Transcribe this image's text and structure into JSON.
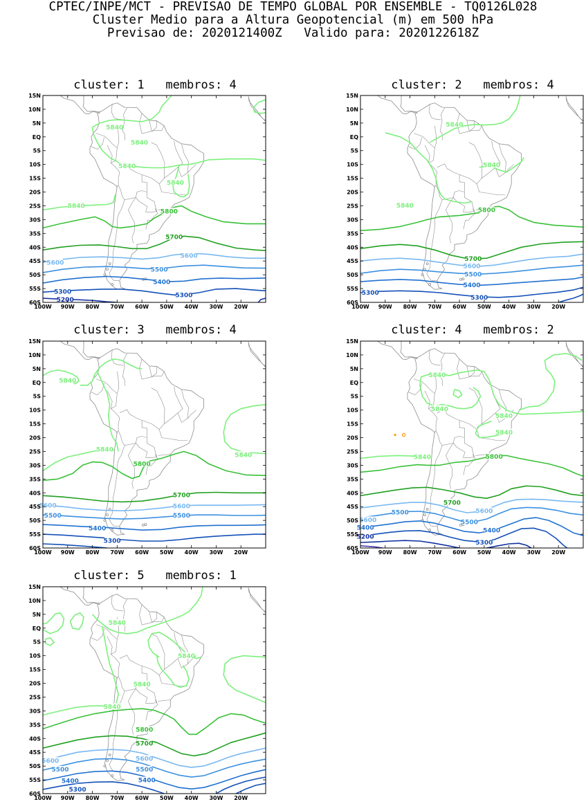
{
  "header": {
    "line1": "CPTEC/INPE/MCT - PREVISAO DE TEMPO GLOBAL POR ENSEMBLE - TQ0126L028",
    "line2": "Cluster Medio para a Altura Geopotencial (m) em 500 hPa",
    "line3": "Previsao de: 2020121400Z   Valido para: 2020122618Z"
  },
  "axes": {
    "lat_ticks": [
      "15N",
      "10N",
      "5N",
      "EQ",
      "5S",
      "10S",
      "15S",
      "20S",
      "25S",
      "30S",
      "35S",
      "40S",
      "45S",
      "50S",
      "55S",
      "60S"
    ],
    "lon_ticks": [
      "100W",
      "90W",
      "80W",
      "70W",
      "60W",
      "50W",
      "40W",
      "30W",
      "20W"
    ]
  },
  "colors": {
    "c5840": "#7cf07c",
    "c5800": "#38c038",
    "c5700": "#20a020",
    "c5600": "#78b8f0",
    "c5500": "#3c90e0",
    "c5400": "#2070d0",
    "c5300": "#1450b8",
    "c5200": "#1030a0",
    "c5100": "#5038b0",
    "coast": "#8c8c8c",
    "spot": "#ff9900"
  },
  "panels": [
    {
      "title": "cluster: 1   membros: 4",
      "labels": [
        {
          "text": "5840",
          "level": "5840"
        },
        {
          "text": "5840",
          "level": "5840"
        },
        {
          "text": "5840",
          "level": "5840"
        },
        {
          "text": "5840",
          "level": "5840"
        },
        {
          "text": "5840",
          "level": "5840"
        },
        {
          "text": "5800",
          "level": "5800"
        },
        {
          "text": "5700",
          "level": "5700"
        },
        {
          "text": "5600",
          "level": "5600"
        },
        {
          "text": "5600",
          "level": "5600"
        },
        {
          "text": "5500",
          "level": "5500"
        },
        {
          "text": "5400",
          "level": "5400"
        },
        {
          "text": "5300",
          "level": "5300"
        },
        {
          "text": "5300",
          "level": "5300"
        },
        {
          "text": "5200",
          "level": "5200"
        }
      ]
    },
    {
      "title": "cluster: 2   membros: 4",
      "labels": [
        {
          "text": "5840",
          "level": "5840"
        },
        {
          "text": "5840",
          "level": "5840"
        },
        {
          "text": "5840",
          "level": "5840"
        },
        {
          "text": "5800",
          "level": "5800"
        },
        {
          "text": "5700",
          "level": "5700"
        },
        {
          "text": "5600",
          "level": "5600"
        },
        {
          "text": "5500",
          "level": "5500"
        },
        {
          "text": "5400",
          "level": "5400"
        },
        {
          "text": "5300",
          "level": "5300"
        },
        {
          "text": "5300",
          "level": "5300"
        }
      ]
    },
    {
      "title": "cluster: 3   membros: 4",
      "labels": [
        {
          "text": "5840",
          "level": "5840"
        },
        {
          "text": "5840",
          "level": "5840"
        },
        {
          "text": "5840",
          "level": "5840"
        },
        {
          "text": "5800",
          "level": "5800"
        },
        {
          "text": "5700",
          "level": "5700"
        },
        {
          "text": "5600",
          "level": "5600"
        },
        {
          "text": "5600",
          "level": "5600"
        },
        {
          "text": "5500",
          "level": "5500"
        },
        {
          "text": "5500",
          "level": "5500"
        },
        {
          "text": "5400",
          "level": "5400"
        },
        {
          "text": "5300",
          "level": "5300"
        }
      ]
    },
    {
      "title": "cluster: 4   membros: 2",
      "labels": [
        {
          "text": "5840",
          "level": "5840"
        },
        {
          "text": "5840",
          "level": "5840"
        },
        {
          "text": "5840",
          "level": "5840"
        },
        {
          "text": "5840",
          "level": "5840"
        },
        {
          "text": "5840",
          "level": "5840"
        },
        {
          "text": "5800",
          "level": "5800"
        },
        {
          "text": "5700",
          "level": "5700"
        },
        {
          "text": "5600",
          "level": "5600"
        },
        {
          "text": "5600",
          "level": "5600"
        },
        {
          "text": "5500",
          "level": "5500"
        },
        {
          "text": "5500",
          "level": "5500"
        },
        {
          "text": "5400",
          "level": "5400"
        },
        {
          "text": "5400",
          "level": "5400"
        },
        {
          "text": "5300",
          "level": "5300"
        },
        {
          "text": "5200",
          "level": "5200"
        }
      ]
    },
    {
      "title": "cluster: 5   membros: 1",
      "labels": [
        {
          "text": "5840",
          "level": "5840"
        },
        {
          "text": "5840",
          "level": "5840"
        },
        {
          "text": "5840",
          "level": "5840"
        },
        {
          "text": "5840",
          "level": "5840"
        },
        {
          "text": "5800",
          "level": "5800"
        },
        {
          "text": "5700",
          "level": "5700"
        },
        {
          "text": "5600",
          "level": "5600"
        },
        {
          "text": "5600",
          "level": "5600"
        },
        {
          "text": "5500",
          "level": "5500"
        },
        {
          "text": "5500",
          "level": "5500"
        },
        {
          "text": "5400",
          "level": "5400"
        },
        {
          "text": "5400",
          "level": "5400"
        },
        {
          "text": "5300",
          "level": "5300"
        }
      ]
    }
  ]
}
